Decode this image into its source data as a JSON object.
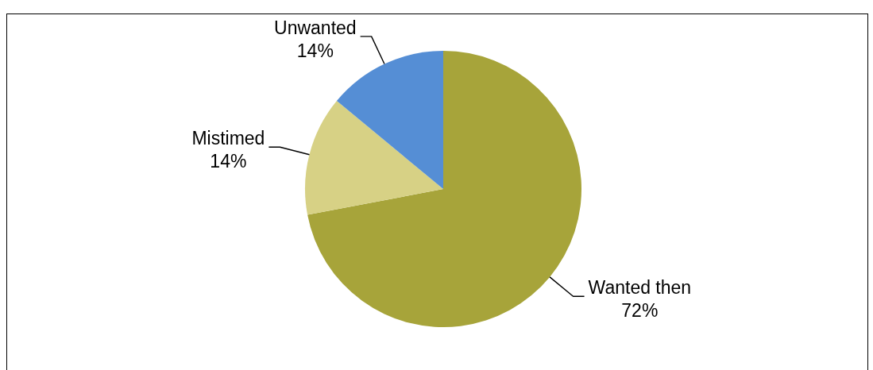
{
  "chart_data": {
    "type": "pie",
    "categories": [
      "Wanted then",
      "Mistimed",
      "Unwanted"
    ],
    "values": [
      72,
      14,
      14
    ],
    "colors": [
      "#a7a43a",
      "#d7d185",
      "#558ed5"
    ],
    "value_labels": [
      "72%",
      "14%",
      "14%"
    ]
  }
}
